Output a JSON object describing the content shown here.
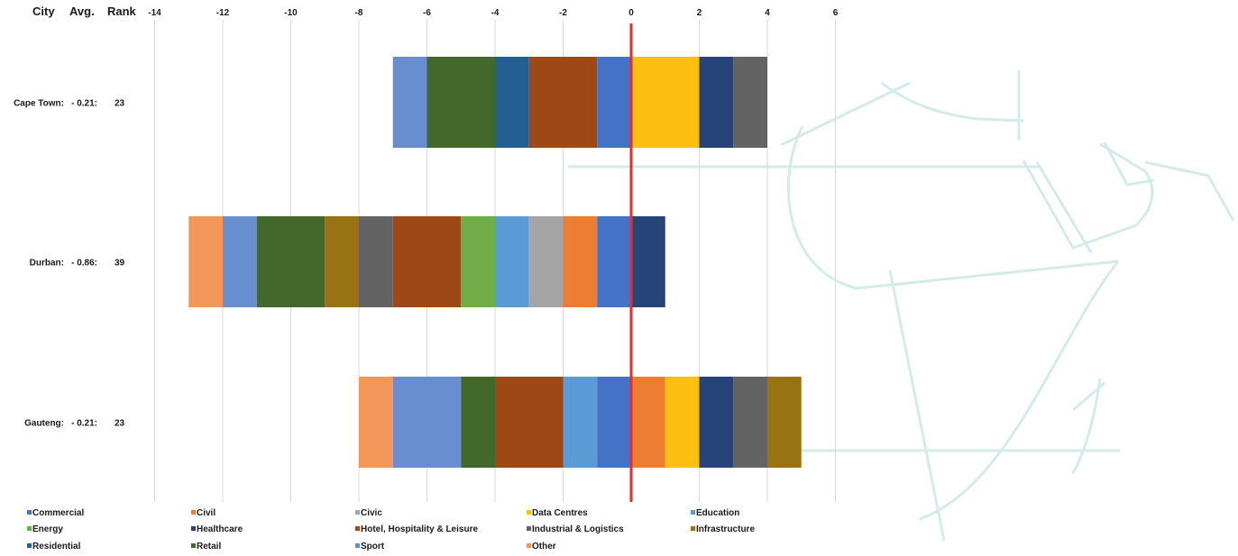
{
  "header": {
    "city": "City",
    "avg": "Avg.",
    "rank": "Rank"
  },
  "chart_data": {
    "type": "bar",
    "orientation": "horizontal",
    "stacked": "diverging",
    "xlim": [
      -14,
      6
    ],
    "x_ticks": [
      -14,
      -12,
      -10,
      -8,
      -6,
      -4,
      -2,
      0,
      2,
      4,
      6
    ],
    "grid": true,
    "legend_position": "bottom",
    "zero_line_color": "#e03030",
    "rows": [
      {
        "city": "Cape Town:",
        "avg": "- 0.21:",
        "rank": "23",
        "segments": [
          {
            "series": "Sport",
            "from": -7,
            "to": -6
          },
          {
            "series": "Retail",
            "from": -6,
            "to": -4
          },
          {
            "series": "Residential",
            "from": -4,
            "to": -3
          },
          {
            "series": "Hotel, Hospitality & Leisure",
            "from": -3,
            "to": -1
          },
          {
            "series": "Commercial",
            "from": -1,
            "to": 0
          },
          {
            "series": "Data Centres",
            "from": 0,
            "to": 2
          },
          {
            "series": "Healthcare",
            "from": 2,
            "to": 3
          },
          {
            "series": "Industrial & Logistics",
            "from": 3,
            "to": 4
          }
        ]
      },
      {
        "city": "Durban:",
        "avg": "- 0.86:",
        "rank": "39",
        "segments": [
          {
            "series": "Other",
            "from": -13,
            "to": -12
          },
          {
            "series": "Sport",
            "from": -12,
            "to": -11
          },
          {
            "series": "Retail",
            "from": -11,
            "to": -9
          },
          {
            "series": "Infrastructure",
            "from": -9,
            "to": -8
          },
          {
            "series": "Industrial & Logistics",
            "from": -8,
            "to": -7
          },
          {
            "series": "Hotel, Hospitality & Leisure",
            "from": -7,
            "to": -5
          },
          {
            "series": "Energy",
            "from": -5,
            "to": -4
          },
          {
            "series": "Education",
            "from": -4,
            "to": -3
          },
          {
            "series": "Civic",
            "from": -3,
            "to": -2
          },
          {
            "series": "Civil",
            "from": -2,
            "to": -1
          },
          {
            "series": "Commercial",
            "from": -1,
            "to": 0
          },
          {
            "series": "Healthcare",
            "from": 0,
            "to": 1
          }
        ]
      },
      {
        "city": "Gauteng:",
        "avg": "- 0.21:",
        "rank": "23",
        "segments": [
          {
            "series": "Other",
            "from": -8,
            "to": -7
          },
          {
            "series": "Sport",
            "from": -7,
            "to": -5
          },
          {
            "series": "Retail",
            "from": -5,
            "to": -4
          },
          {
            "series": "Hotel, Hospitality & Leisure",
            "from": -4,
            "to": -2
          },
          {
            "series": "Education",
            "from": -2,
            "to": -1
          },
          {
            "series": "Commercial",
            "from": -1,
            "to": 0
          },
          {
            "series": "Civil",
            "from": 0,
            "to": 1
          },
          {
            "series": "Data Centres",
            "from": 1,
            "to": 2
          },
          {
            "series": "Healthcare",
            "from": 2,
            "to": 3
          },
          {
            "series": "Industrial & Logistics",
            "from": 3,
            "to": 4
          },
          {
            "series": "Infrastructure",
            "from": 4,
            "to": 5
          }
        ]
      }
    ],
    "legend": [
      {
        "name": "Commercial",
        "color": "#4472c4"
      },
      {
        "name": "Civil",
        "color": "#ed7d31"
      },
      {
        "name": "Civic",
        "color": "#a5a5a5"
      },
      {
        "name": "Data Centres",
        "color": "#fdbf10"
      },
      {
        "name": "Education",
        "color": "#5b9bd5"
      },
      {
        "name": "Energy",
        "color": "#70ad47"
      },
      {
        "name": "Healthcare",
        "color": "#264478"
      },
      {
        "name": "Hotel, Hospitality & Leisure",
        "color": "#9e4815"
      },
      {
        "name": "Industrial & Logistics",
        "color": "#636363"
      },
      {
        "name": "Infrastructure",
        "color": "#997213"
      },
      {
        "name": "Residential",
        "color": "#255e91"
      },
      {
        "name": "Retail",
        "color": "#43682b"
      },
      {
        "name": "Sport",
        "color": "#698ed0"
      },
      {
        "name": "Other",
        "color": "#f1975a"
      }
    ]
  }
}
